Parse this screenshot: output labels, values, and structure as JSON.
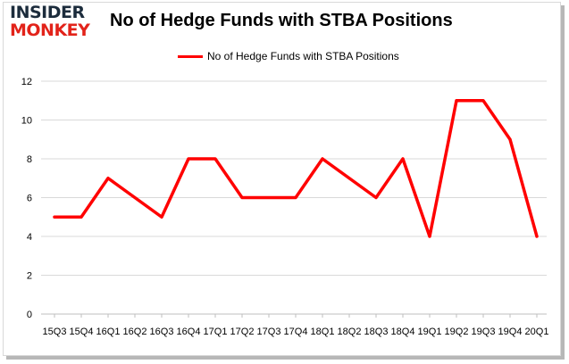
{
  "brand": {
    "logo_line1": "INSIDER",
    "logo_line2": "MONKEY"
  },
  "chart_data": {
    "type": "line",
    "title": "No of Hedge Funds with STBA Positions",
    "xlabel": "",
    "ylabel": "",
    "categories": [
      "15Q3",
      "15Q4",
      "16Q1",
      "16Q2",
      "16Q3",
      "16Q4",
      "17Q1",
      "17Q2",
      "17Q3",
      "17Q4",
      "18Q1",
      "18Q2",
      "18Q3",
      "18Q4",
      "19Q1",
      "19Q2",
      "19Q3",
      "19Q4",
      "20Q1"
    ],
    "series": [
      {
        "name": "No of Hedge Funds with STBA Positions",
        "color": "#ff0000",
        "values": [
          5,
          5,
          7,
          6,
          5,
          8,
          8,
          6,
          6,
          6,
          8,
          7,
          6,
          8,
          4,
          11,
          11,
          9,
          4
        ]
      }
    ],
    "ylim": [
      0,
      12
    ],
    "yticks": [
      0,
      2,
      4,
      6,
      8,
      10,
      12
    ],
    "grid": true,
    "legend": "top-center"
  }
}
